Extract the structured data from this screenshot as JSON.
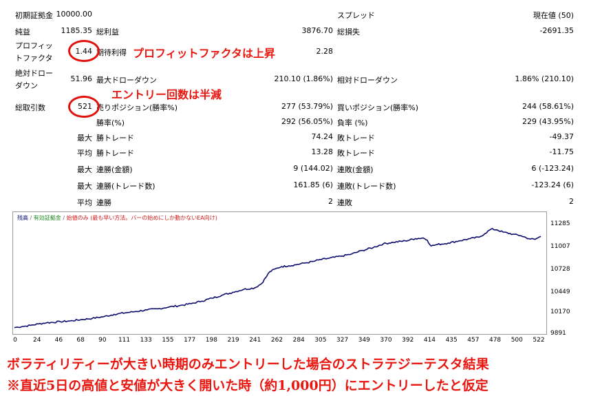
{
  "stats": {
    "rows": [
      {
        "l1": "初期証拠金",
        "v1": "10000.00",
        "l2": "",
        "v2": "",
        "l3": "スプレッド",
        "v3": "現在値 (50)"
      },
      {
        "l1": "純益",
        "v1": "1185.35",
        "l2": "総利益",
        "v2": "3876.70",
        "l3": "総損失",
        "v3": "-2691.35"
      },
      {
        "l1": "プロフィッ",
        "l1b": "トファクタ",
        "v1": "1.44",
        "l2": "期待利得",
        "v2": "2.28",
        "l3": "",
        "v3": ""
      },
      {
        "l1": "絶対ドロー",
        "l1b": "ダウン",
        "v1": "51.96",
        "l2": "最大ドローダウン",
        "v2": "210.10 (1.86%)",
        "l3": "相対ドローダウン",
        "v3": "1.86% (210.10)"
      },
      {
        "l1": "総取引数",
        "v1": "521",
        "l2": "売りポジション(勝率%)",
        "v2": "277 (53.79%)",
        "l3": "買いポジション(勝率%)",
        "v3": "244 (58.61%)"
      },
      {
        "l0": "",
        "l2": "勝率(%)",
        "v2": "292 (56.05%)",
        "l3": "負率 (%)",
        "v3": "229 (43.95%)"
      },
      {
        "l0": "最大",
        "l2": "勝トレード",
        "v2": "74.24",
        "l3": "敗トレード",
        "v3": "-49.37"
      },
      {
        "l0": "平均",
        "l2": "勝トレード",
        "v2": "13.28",
        "l3": "敗トレード",
        "v3": "-11.75"
      },
      {
        "l0": "最大",
        "l2": "連勝(金額)",
        "v2": "9 (144.02)",
        "l3": "連敗(金額)",
        "v3": "6 (-123.24)"
      },
      {
        "l0": "最大",
        "l2": "連勝(トレード数)",
        "v2": "161.85 (6)",
        "l3": "連敗(トレード数)",
        "v3": "-123.24 (6)"
      },
      {
        "l0": "平均",
        "l2": "連勝",
        "v2": "2",
        "l3": "連敗",
        "v3": "2"
      }
    ]
  },
  "annotations": {
    "pf": "プロフィットファクタは上昇",
    "entries": "エントリー回数は半減"
  },
  "chart_data": {
    "type": "line",
    "legend": {
      "balance": "残高",
      "equity": "有効証拠金",
      "note": "始値のみ (最も早い方法。バーの始めにしか動かないEA向け)"
    },
    "colors": {
      "balance": "#0b0b6e",
      "equity": "#1e8a1e",
      "note": "#d11a1a"
    },
    "yticks": [
      "11285",
      "11007",
      "10728",
      "10449",
      "10170",
      "9891"
    ],
    "xticks": [
      "0",
      "24",
      "46",
      "68",
      "90",
      "111",
      "133",
      "155",
      "177",
      "198",
      "219",
      "241",
      "262",
      "284",
      "305",
      "327",
      "349",
      "370",
      "392",
      "414",
      "435",
      "457",
      "478",
      "500",
      "522"
    ],
    "x_range": [
      0,
      530
    ],
    "ylim": [
      9891,
      11400
    ],
    "x": [
      0,
      8,
      16,
      24,
      32,
      46,
      56,
      68,
      78,
      90,
      100,
      111,
      122,
      133,
      144,
      155,
      166,
      177,
      188,
      198,
      208,
      219,
      230,
      241,
      248,
      252,
      256,
      262,
      268,
      275,
      284,
      292,
      300,
      305,
      314,
      327,
      338,
      349,
      360,
      370,
      380,
      392,
      402,
      410,
      414,
      418,
      424,
      435,
      446,
      457,
      466,
      472,
      478,
      484,
      490,
      500,
      508,
      516,
      522,
      528
    ],
    "values": [
      9960,
      9975,
      9990,
      10010,
      10025,
      10040,
      10050,
      10070,
      10085,
      10110,
      10140,
      10160,
      10180,
      10200,
      10215,
      10240,
      10260,
      10285,
      10320,
      10360,
      10400,
      10440,
      10480,
      10500,
      10560,
      10640,
      10720,
      10760,
      10790,
      10800,
      10820,
      10840,
      10860,
      10880,
      10900,
      10930,
      10960,
      11010,
      11050,
      11100,
      11120,
      11140,
      11170,
      11180,
      11150,
      11070,
      11090,
      11110,
      11140,
      11170,
      11190,
      11240,
      11300,
      11290,
      11260,
      11230,
      11210,
      11170,
      11160,
      11200
    ]
  },
  "footer": {
    "line1": "ボラティリティーが大きい時期のみエントリーした場合のストラテジーテスタ結果",
    "line2": "※直近5日の高値と安値が大きく開いた時（約1,000円）にエントリーしたと仮定"
  }
}
